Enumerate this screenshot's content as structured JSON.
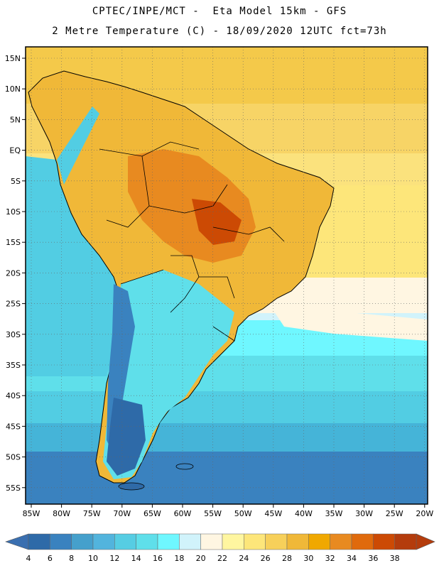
{
  "header": {
    "line1": "CPTEC/INPE/MCT -  Eta Model 15km - GFS",
    "line2": "2 Metre Temperature (C) - 18/09/2020 12UTC fct=73h"
  },
  "map": {
    "lon_range": [
      -86,
      -20
    ],
    "lat_range": [
      -58,
      17
    ],
    "lon_ticks": [
      "85W",
      "80W",
      "75W",
      "70W",
      "65W",
      "60W",
      "55W",
      "50W",
      "45W",
      "40W",
      "35W",
      "30W",
      "25W",
      "20W"
    ],
    "lat_ticks": [
      "15N",
      "10N",
      "5N",
      "EQ",
      "5S",
      "10S",
      "15S",
      "20S",
      "25S",
      "30S",
      "35S",
      "40S",
      "45S",
      "50S",
      "55S"
    ],
    "gridlines": "dotted"
  },
  "colorbar": {
    "labels": [
      "4",
      "6",
      "8",
      "10",
      "12",
      "14",
      "16",
      "18",
      "20",
      "22",
      "24",
      "26",
      "28",
      "30",
      "32",
      "34",
      "36",
      "38"
    ],
    "colors": [
      "#2e6aa8",
      "#3a82bf",
      "#45a0cc",
      "#52b4dd",
      "#56cde3",
      "#5fdfea",
      "#6ff7ff",
      "#d1f3fb",
      "#fff6e2",
      "#fff6a0",
      "#fde67a",
      "#f7d05a",
      "#f0b838",
      "#f0a800",
      "#e88a20",
      "#e06a0c",
      "#cc4a04",
      "#b43c0c"
    ],
    "left_arrow_color": "#3a6fb0",
    "right_arrow_color": "#b43c0c"
  }
}
